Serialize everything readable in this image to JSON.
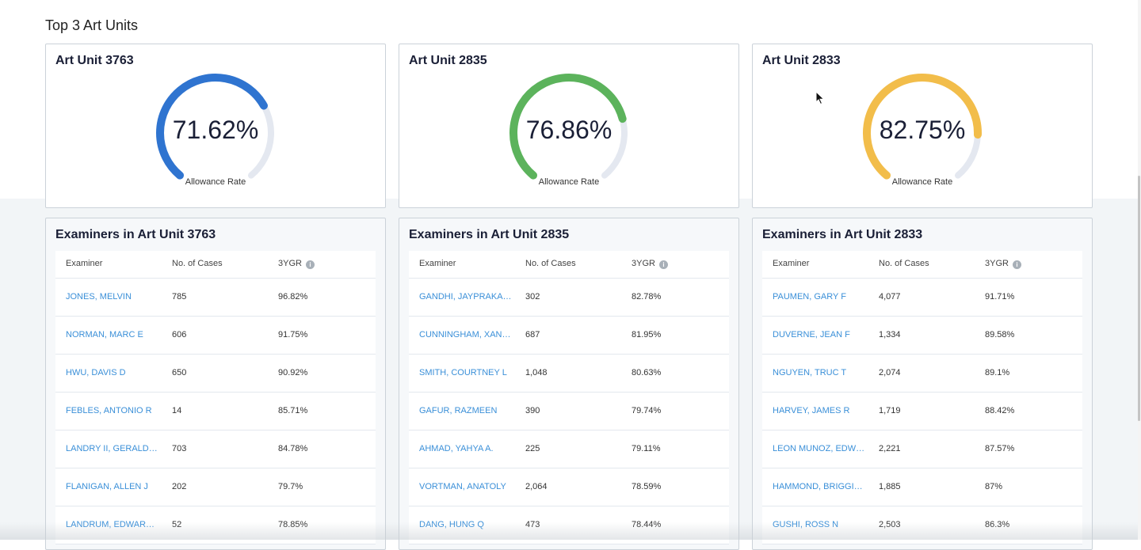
{
  "section_title": "Top 3 Art Units",
  "colors": {
    "unit1": "#2f74d0",
    "unit2": "#5cb35c",
    "unit3": "#f2bd4a",
    "track": "#e4e8f0",
    "link": "#3a8fd8"
  },
  "gauges": [
    {
      "title": "Art Unit 3763",
      "value": "71.62%",
      "fraction": 0.7162,
      "label": "Allowance Rate",
      "color": "#2f74d0"
    },
    {
      "title": "Art Unit 2835",
      "value": "76.86%",
      "fraction": 0.7686,
      "label": "Allowance Rate",
      "color": "#5cb35c"
    },
    {
      "title": "Art Unit 2833",
      "value": "82.75%",
      "fraction": 0.8275,
      "label": "Allowance Rate",
      "color": "#f2bd4a"
    }
  ],
  "tables": [
    {
      "title": "Examiners in Art Unit 3763",
      "columns": [
        "Examiner",
        "No. of Cases",
        "3YGR"
      ],
      "rows": [
        [
          "JONES, MELVIN",
          "785",
          "96.82%"
        ],
        [
          "NORMAN, MARC E",
          "606",
          "91.75%"
        ],
        [
          "HWU, DAVIS D",
          "650",
          "90.92%"
        ],
        [
          "FEBLES, ANTONIO R",
          "14",
          "85.71%"
        ],
        [
          "LANDRY II, GERALD …",
          "703",
          "84.78%"
        ],
        [
          "FLANIGAN, ALLEN J",
          "202",
          "79.7%"
        ],
        [
          "LANDRUM, EDWARD F",
          "52",
          "78.85%"
        ]
      ]
    },
    {
      "title": "Examiners in Art Unit 2835",
      "columns": [
        "Examiner",
        "No. of Cases",
        "3YGR"
      ],
      "rows": [
        [
          "GANDHI, JAYPRAKAS…",
          "302",
          "82.78%"
        ],
        [
          "CUNNINGHAM, XANT…",
          "687",
          "81.95%"
        ],
        [
          "SMITH, COURTNEY L",
          "1,048",
          "80.63%"
        ],
        [
          "GAFUR, RAZMEEN",
          "390",
          "79.74%"
        ],
        [
          "AHMAD, YAHYA A.",
          "225",
          "79.11%"
        ],
        [
          "VORTMAN, ANATOLY",
          "2,064",
          "78.59%"
        ],
        [
          "DANG, HUNG Q",
          "473",
          "78.44%"
        ]
      ]
    },
    {
      "title": "Examiners in Art Unit 2833",
      "columns": [
        "Examiner",
        "No. of Cases",
        "3YGR"
      ],
      "rows": [
        [
          "PAUMEN, GARY F",
          "4,077",
          "91.71%"
        ],
        [
          "DUVERNE, JEAN F",
          "1,334",
          "89.58%"
        ],
        [
          "NGUYEN, TRUC T",
          "2,074",
          "89.1%"
        ],
        [
          "HARVEY, JAMES R",
          "1,719",
          "88.42%"
        ],
        [
          "LEON MUNOZ, EDWI…",
          "2,221",
          "87.57%"
        ],
        [
          "HAMMOND, BRIGGIT…",
          "1,885",
          "87%"
        ],
        [
          "GUSHI, ROSS N",
          "2,503",
          "86.3%"
        ]
      ]
    }
  ],
  "info_icon": "info-icon"
}
